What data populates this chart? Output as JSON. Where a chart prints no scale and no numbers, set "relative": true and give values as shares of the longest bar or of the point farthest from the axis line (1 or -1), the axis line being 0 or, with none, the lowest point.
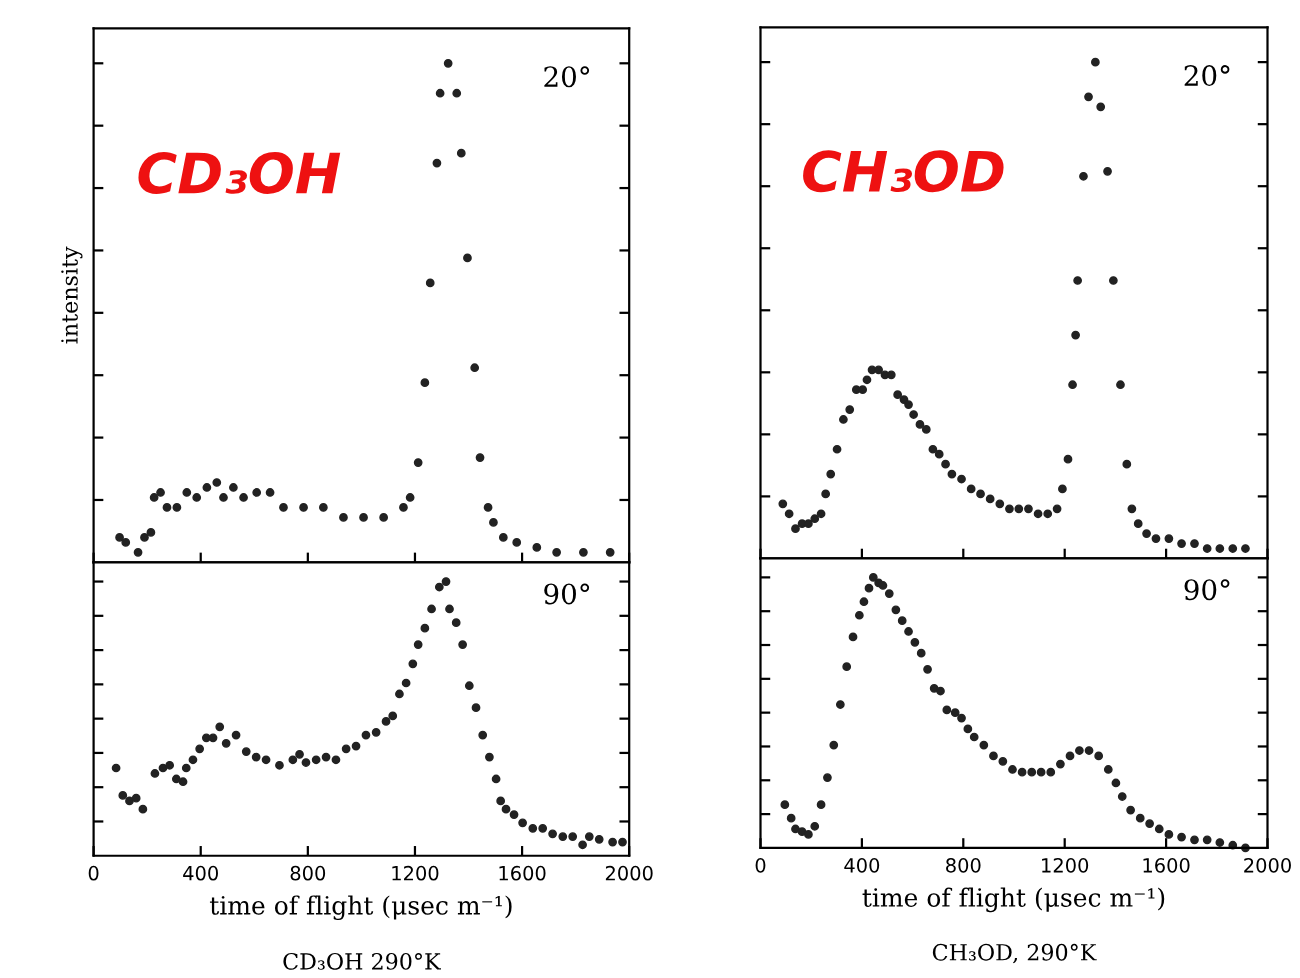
{
  "chart_data": [
    {
      "type": "scatter",
      "relative": true,
      "ylabel": "intensity",
      "annotations": [
        "20°",
        "CD₃OH"
      ],
      "marker": "circle",
      "tick_labels": false,
      "xlim": [
        0,
        2000
      ],
      "xticks": [
        0,
        400,
        800,
        1200,
        1600,
        2000
      ],
      "series": [
        {
          "color": "#222222",
          "x": [
            97,
            120,
            166,
            190,
            214,
            226,
            250,
            274,
            311,
            348,
            385,
            423,
            460,
            485,
            522,
            560,
            609,
            659,
            709,
            784,
            858,
            933,
            1008,
            1083,
            1157,
            1182,
            1212,
            1237,
            1257,
            1282,
            1294,
            1324,
            1356,
            1373,
            1396,
            1423,
            1443,
            1473,
            1493,
            1530,
            1580,
            1655,
            1729,
            1829,
            1929
          ],
          "values": [
            0.05,
            0.04,
            0.02,
            0.05,
            0.06,
            0.13,
            0.14,
            0.11,
            0.11,
            0.14,
            0.13,
            0.15,
            0.16,
            0.13,
            0.15,
            0.13,
            0.14,
            0.14,
            0.11,
            0.11,
            0.11,
            0.09,
            0.09,
            0.09,
            0.11,
            0.13,
            0.2,
            0.36,
            0.56,
            0.8,
            0.94,
            1,
            0.94,
            0.82,
            0.61,
            0.39,
            0.21,
            0.11,
            0.08,
            0.05,
            0.04,
            0.03,
            0.02,
            0.02,
            0.02
          ]
        }
      ]
    },
    {
      "type": "scatter",
      "relative": true,
      "xlabel": "time of flight (μsec m⁻¹)",
      "annotations": [
        "90°",
        "CD₃OH 290°K"
      ],
      "marker": "circle",
      "tick_labels": "x",
      "xlim": [
        0,
        2000
      ],
      "xticks": [
        0,
        400,
        800,
        1200,
        1600,
        2000
      ],
      "series": [
        {
          "color": "#222222",
          "x": [
            84,
            109,
            134,
            159,
            184,
            229,
            259,
            284,
            309,
            334,
            346,
            371,
            396,
            421,
            446,
            471,
            495,
            532,
            570,
            607,
            644,
            694,
            744,
            769,
            793,
            831,
            868,
            905,
            943,
            980,
            1017,
            1055,
            1092,
            1117,
            1142,
            1167,
            1192,
            1212,
            1237,
            1262,
            1291,
            1316,
            1329,
            1354,
            1378,
            1403,
            1428,
            1453,
            1478,
            1503,
            1520,
            1540,
            1570,
            1602,
            1640,
            1677,
            1714,
            1752,
            1789,
            1826,
            1851,
            1888,
            1938,
            1975
          ],
          "values": [
            0.32,
            0.22,
            0.2,
            0.21,
            0.17,
            0.3,
            0.32,
            0.33,
            0.28,
            0.27,
            0.32,
            0.35,
            0.39,
            0.43,
            0.43,
            0.47,
            0.41,
            0.44,
            0.38,
            0.36,
            0.35,
            0.33,
            0.35,
            0.37,
            0.34,
            0.35,
            0.36,
            0.35,
            0.39,
            0.4,
            0.44,
            0.45,
            0.49,
            0.51,
            0.59,
            0.63,
            0.7,
            0.77,
            0.83,
            0.9,
            0.98,
            1,
            0.9,
            0.85,
            0.77,
            0.62,
            0.54,
            0.44,
            0.36,
            0.28,
            0.2,
            0.17,
            0.15,
            0.12,
            0.1,
            0.1,
            0.08,
            0.07,
            0.07,
            0.04,
            0.07,
            0.06,
            0.05,
            0.05
          ]
        }
      ]
    },
    {
      "type": "scatter",
      "relative": true,
      "annotations": [
        "20°",
        "CH₃OD"
      ],
      "marker": "circle",
      "tick_labels": false,
      "xlim": [
        0,
        2000
      ],
      "xticks": [
        0,
        400,
        800,
        1200,
        1600,
        2000
      ],
      "series": [
        {
          "color": "#222222",
          "x": [
            88,
            113,
            138,
            164,
            189,
            214,
            239,
            257,
            277,
            302,
            327,
            352,
            378,
            403,
            420,
            440,
            466,
            491,
            516,
            541,
            566,
            584,
            604,
            629,
            654,
            680,
            705,
            730,
            755,
            793,
            831,
            868,
            906,
            944,
            982,
            1019,
            1057,
            1095,
            1133,
            1170,
            1191,
            1213,
            1231,
            1243,
            1251,
            1274,
            1294,
            1321,
            1342,
            1369,
            1392,
            1420,
            1445,
            1465,
            1490,
            1523,
            1560,
            1611,
            1661,
            1712,
            1762,
            1812,
            1863,
            1913
          ],
          "values": [
            0.11,
            0.09,
            0.06,
            0.07,
            0.07,
            0.08,
            0.09,
            0.13,
            0.17,
            0.22,
            0.28,
            0.3,
            0.34,
            0.34,
            0.36,
            0.38,
            0.38,
            0.37,
            0.37,
            0.33,
            0.32,
            0.31,
            0.29,
            0.27,
            0.26,
            0.22,
            0.21,
            0.19,
            0.17,
            0.16,
            0.14,
            0.13,
            0.12,
            0.11,
            0.1,
            0.1,
            0.1,
            0.09,
            0.09,
            0.1,
            0.14,
            0.2,
            0.35,
            0.45,
            0.56,
            0.77,
            0.93,
            1,
            0.91,
            0.78,
            0.56,
            0.35,
            0.19,
            0.1,
            0.07,
            0.05,
            0.04,
            0.04,
            0.03,
            0.03,
            0.02,
            0.02,
            0.02,
            0.02
          ]
        }
      ]
    },
    {
      "type": "scatter",
      "relative": true,
      "xlabel": "time of flight (μsec m⁻¹)",
      "annotations": [
        "90°",
        "CH₃OD, 290°K"
      ],
      "marker": "circle",
      "tick_labels": "x",
      "xlim": [
        0,
        2000
      ],
      "xticks": [
        0,
        400,
        800,
        1200,
        1600,
        2000
      ],
      "series": [
        {
          "color": "#222222",
          "x": [
            96,
            121,
            138,
            164,
            189,
            214,
            239,
            264,
            289,
            315,
            340,
            365,
            390,
            408,
            428,
            445,
            466,
            483,
            508,
            534,
            559,
            584,
            609,
            634,
            659,
            685,
            710,
            735,
            768,
            793,
            818,
            843,
            881,
            919,
            956,
            994,
            1032,
            1070,
            1107,
            1145,
            1183,
            1221,
            1258,
            1296,
            1334,
            1372,
            1402,
            1427,
            1460,
            1498,
            1535,
            1573,
            1611,
            1661,
            1712,
            1762,
            1812,
            1863,
            1913
          ],
          "values": [
            0.16,
            0.11,
            0.07,
            0.06,
            0.05,
            0.08,
            0.16,
            0.26,
            0.38,
            0.53,
            0.67,
            0.78,
            0.86,
            0.91,
            0.96,
            1,
            0.98,
            0.97,
            0.94,
            0.88,
            0.84,
            0.8,
            0.76,
            0.72,
            0.66,
            0.59,
            0.58,
            0.51,
            0.5,
            0.48,
            0.44,
            0.41,
            0.38,
            0.34,
            0.32,
            0.29,
            0.28,
            0.28,
            0.28,
            0.28,
            0.31,
            0.34,
            0.36,
            0.36,
            0.34,
            0.29,
            0.24,
            0.19,
            0.14,
            0.11,
            0.09,
            0.07,
            0.05,
            0.04,
            0.03,
            0.03,
            0.02,
            0.01,
            0
          ]
        }
      ]
    }
  ]
}
